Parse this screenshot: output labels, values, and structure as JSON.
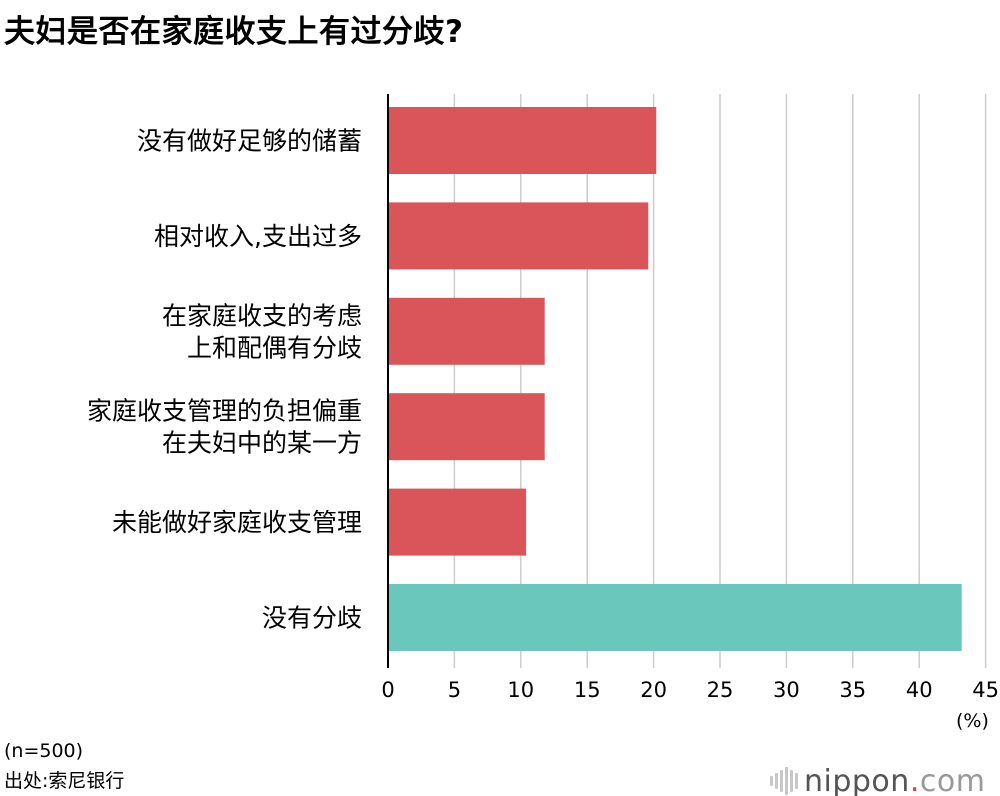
{
  "title": "夫妇是否在家庭收支上有过分歧?",
  "unit_label": "(%)",
  "note": "(n=500)",
  "source": "出处:索尼银行",
  "logo": {
    "name": "nippon",
    "dot": ".",
    "tld": "com"
  },
  "colors": {
    "bar_default": "#d9555a",
    "bar_highlight": "#69c7bb",
    "grid": "#cccccc",
    "axis": "#000000"
  },
  "chart_data": {
    "type": "bar",
    "orientation": "horizontal",
    "title": "夫妇是否在家庭收支上有过分歧?",
    "xlabel": "(%)",
    "ylabel": "",
    "xlim": [
      0,
      45
    ],
    "xticks": [
      "0",
      "5",
      "10",
      "15",
      "20",
      "25",
      "30",
      "35",
      "40",
      "45"
    ],
    "grid": true,
    "categories": [
      [
        "没有做好足够的储蓄"
      ],
      [
        "相对收入,支出过多"
      ],
      [
        "在家庭收支的考虑",
        "上和配偶有分歧"
      ],
      [
        "家庭收支管理的负担偏重",
        "在夫妇中的某一方"
      ],
      [
        "未能做好家庭收支管理"
      ],
      [
        "没有分歧"
      ]
    ],
    "values": [
      20.2,
      19.6,
      11.8,
      11.8,
      10.4,
      43.2
    ],
    "highlight": [
      false,
      false,
      false,
      false,
      false,
      true
    ]
  }
}
